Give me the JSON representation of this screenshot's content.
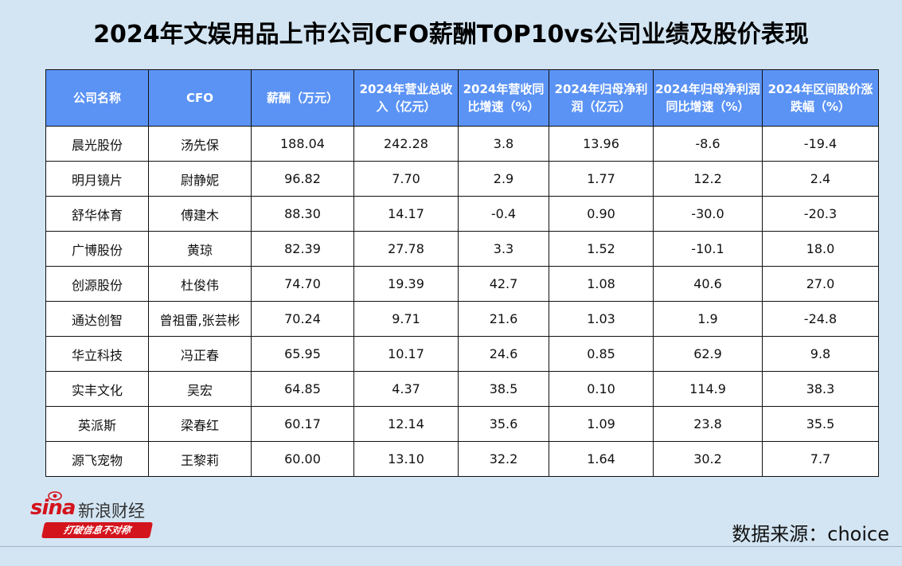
{
  "title": "2024年文娱用品上市公司CFO薪酬TOP10vs公司业绩及股价表现",
  "table": {
    "headers": [
      "公司名称",
      "CFO",
      "薪酬（万元）",
      "2024年营业总收入（亿元）",
      "2024年营收同比增速（%）",
      "2024年归母净利润（亿元）",
      "2024年归母净利润同比增速（%）",
      "2024年区间股价涨跌幅（%）"
    ],
    "rows": [
      [
        "晨光股份",
        "汤先保",
        "188.04",
        "242.28",
        "3.8",
        "13.96",
        "-8.6",
        "-19.4"
      ],
      [
        "明月镜片",
        "尉静妮",
        "96.82",
        "7.70",
        "2.9",
        "1.77",
        "12.2",
        "2.4"
      ],
      [
        "舒华体育",
        "傅建木",
        "88.30",
        "14.17",
        "-0.4",
        "0.90",
        "-30.0",
        "-20.3"
      ],
      [
        "广博股份",
        "黄琼",
        "82.39",
        "27.78",
        "3.3",
        "1.52",
        "-10.1",
        "18.0"
      ],
      [
        "创源股份",
        "杜俊伟",
        "74.70",
        "19.39",
        "42.7",
        "1.08",
        "40.6",
        "27.0"
      ],
      [
        "通达创智",
        "曾祖雷,张芸彬",
        "70.24",
        "9.71",
        "21.6",
        "1.03",
        "1.9",
        "-24.8"
      ],
      [
        "华立科技",
        "冯正春",
        "65.95",
        "10.17",
        "24.6",
        "0.85",
        "62.9",
        "9.8"
      ],
      [
        "实丰文化",
        "吴宏",
        "64.85",
        "4.37",
        "38.5",
        "0.10",
        "114.9",
        "38.3"
      ],
      [
        "英派斯",
        "梁春红",
        "60.17",
        "12.14",
        "35.6",
        "1.09",
        "23.8",
        "35.5"
      ],
      [
        "源飞宠物",
        "王黎莉",
        "60.00",
        "13.10",
        "32.2",
        "1.64",
        "30.2",
        "7.7"
      ]
    ]
  },
  "logo": {
    "brand": "sina",
    "name_cn": "新浪财经",
    "slogan": "打破信息不对称"
  },
  "source": "数据来源：choice",
  "colors": {
    "background": "#d3e5f3",
    "header": "#5b93f5",
    "brand_red": "#d4141d"
  }
}
